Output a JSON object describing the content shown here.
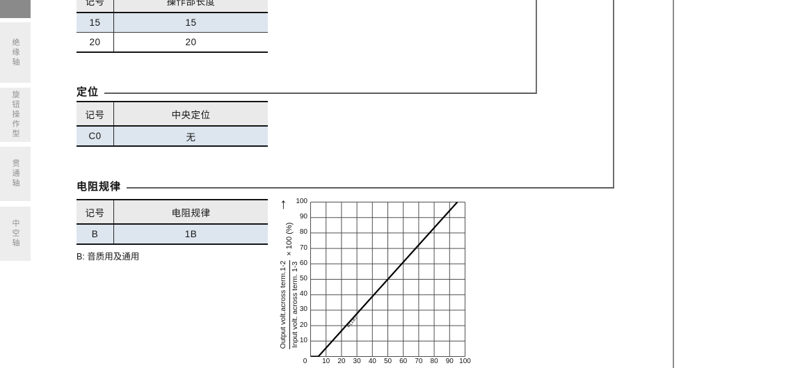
{
  "sidebar": {
    "tabs": [
      {
        "label": "绝缘轴"
      },
      {
        "label": "旋钮操作型"
      },
      {
        "label": "贯通轴"
      },
      {
        "label": "中空轴"
      }
    ]
  },
  "length_table": {
    "headers": [
      "记号",
      "操作部长度"
    ],
    "rows": [
      [
        "15",
        "15"
      ],
      [
        "20",
        "20"
      ]
    ]
  },
  "detent_section": {
    "title": "定位",
    "table": {
      "headers": [
        "记号",
        "中央定位"
      ],
      "rows": [
        [
          "C0",
          "无"
        ]
      ]
    }
  },
  "taper_section": {
    "title": "电阻规律",
    "table": {
      "headers": [
        "记号",
        "电阻规律"
      ],
      "rows": [
        [
          "B",
          "1B"
        ]
      ]
    },
    "note": "B: 音质用及通用"
  },
  "chart_data": {
    "type": "line",
    "title": "",
    "xlabel": "",
    "ylabel_numerator": "Output volt.across term.1-2",
    "ylabel_denominator": "Input volt. across term. 1-3",
    "ylabel_multiplier": "× 100 (%)",
    "arrow_glyph": "↑",
    "x_ticks": [
      "0",
      "10",
      "20",
      "30",
      "40",
      "50",
      "60",
      "70",
      "80",
      "90",
      "100"
    ],
    "y_ticks": [
      "100",
      "90",
      "80",
      "70",
      "60",
      "50",
      "40",
      "30",
      "20",
      "10"
    ],
    "origin_label": "0",
    "xlim": [
      0,
      100
    ],
    "ylim": [
      0,
      100
    ],
    "grid": true,
    "legend_position": "on-line",
    "series": [
      {
        "name": "B(1B)",
        "points": [
          [
            0,
            0
          ],
          [
            5,
            0
          ],
          [
            95,
            100
          ]
        ]
      }
    ]
  },
  "colors": {
    "row_highlight": "#dde6ef",
    "table_header_bg": "#eaeaea",
    "sidebar_tab_bg": "#ededed",
    "sidebar_tab_active_bg": "#8a8a8a",
    "sidebar_tab_text": "#8f8f8f",
    "connector_line": "#6e6e6e",
    "page_divider": "#8c8c8c",
    "chart_grid": "#4f4f4f",
    "curve": "#000000"
  }
}
